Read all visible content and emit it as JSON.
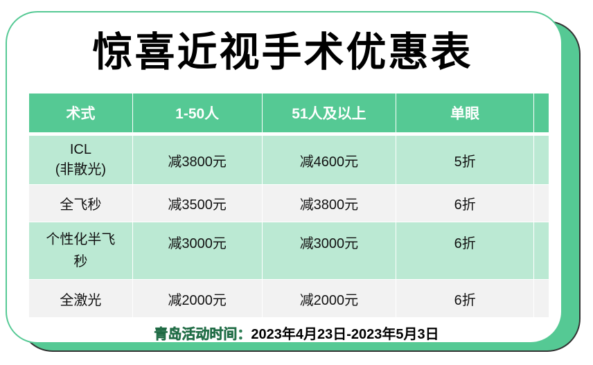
{
  "title": "惊喜近视手术优惠表",
  "table": {
    "headers": [
      "术式",
      "1-50人",
      "51人及以上",
      "单眼",
      ""
    ],
    "rows": [
      {
        "name_line1": "ICL",
        "name_line2": "(非散光)",
        "c1": "减3800元",
        "c2": "减4600元",
        "c3": "5折"
      },
      {
        "name_line1": "全飞秒",
        "name_line2": "",
        "c1": "减3500元",
        "c2": "减3800元",
        "c3": "6折"
      },
      {
        "name_line1": "个性化半飞",
        "name_line2": "秒",
        "c1": "减3000元",
        "c2": "减3000元",
        "c3": "6折"
      },
      {
        "name_line1": "全激光",
        "name_line2": "",
        "c1": "减2000元",
        "c2": "减2000元",
        "c3": "6折"
      }
    ]
  },
  "footer": {
    "label": "青岛活动时间：",
    "dates": "2023年4月23日-2023年5月3日"
  },
  "colors": {
    "accent": "#55c994",
    "row_green": "#bbe9d3",
    "row_gray": "#f2f2f2"
  }
}
